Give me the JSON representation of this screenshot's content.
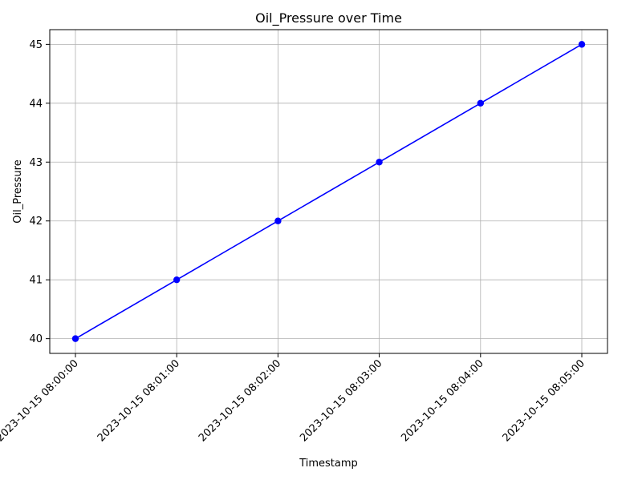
{
  "chart_data": {
    "type": "line",
    "title": "Oil_Pressure over Time",
    "xlabel": "Timestamp",
    "ylabel": "Oil_Pressure",
    "x": [
      "2023-10-15 08:00:00",
      "2023-10-15 08:01:00",
      "2023-10-15 08:02:00",
      "2023-10-15 08:03:00",
      "2023-10-15 08:04:00",
      "2023-10-15 08:05:00"
    ],
    "series": [
      {
        "values": [
          40,
          41,
          42,
          43,
          44,
          45
        ],
        "color": "#0000ff",
        "marker": "circle"
      }
    ],
    "yticks": [
      40,
      41,
      42,
      43,
      44,
      45
    ],
    "ylim": [
      39.75,
      45.25
    ],
    "grid": true,
    "legend": "none"
  }
}
